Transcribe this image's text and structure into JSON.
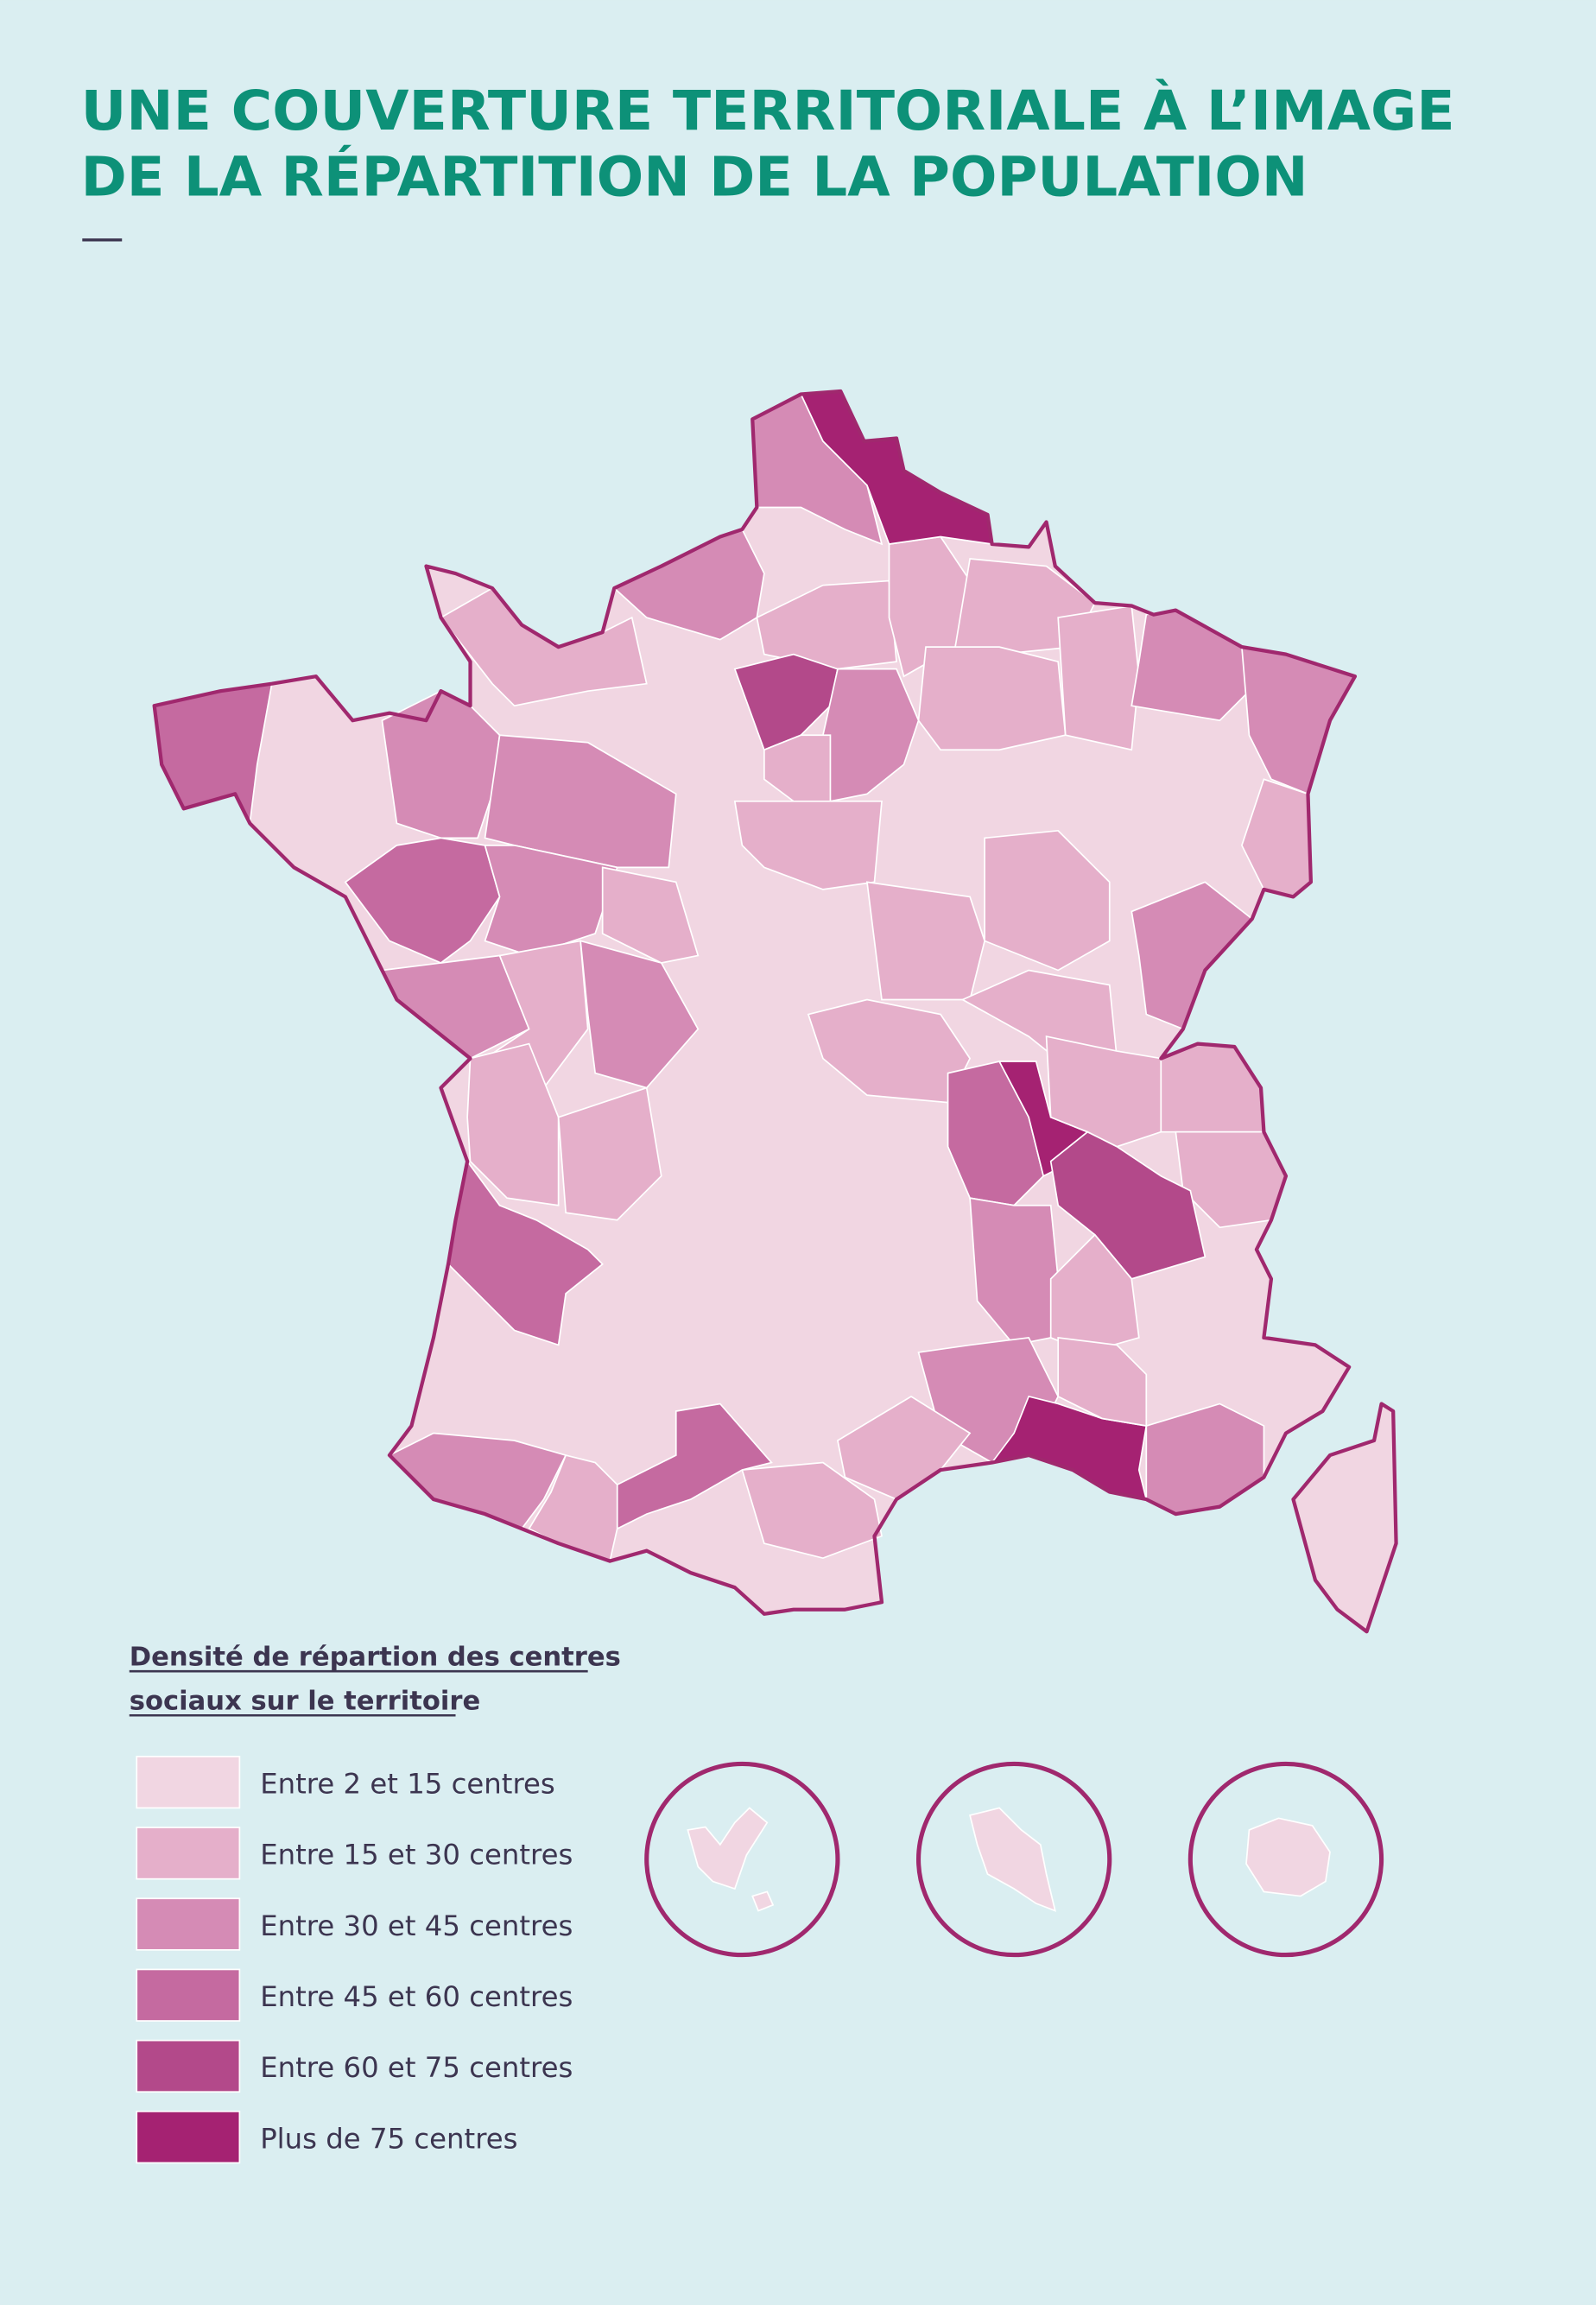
{
  "header": {
    "title_lines": [
      "UNE COUVERTURE TERRITORIALE À L’IMAGE",
      "DE LA RÉPARTITION DE LA POPULATION"
    ]
  },
  "legend": {
    "title_lines": [
      "Densité de répartion des centres",
      "sociaux sur le territoire"
    ],
    "items": [
      {
        "label": "Entre 2 et 15 centres",
        "color": "#f1d6e2"
      },
      {
        "label": "Entre 15 et 30 centres",
        "color": "#e5afca"
      },
      {
        "label": "Entre 30 et 45 centres",
        "color": "#d58bb5"
      },
      {
        "label": "Entre 45 et 60 centres",
        "color": "#c56aa0"
      },
      {
        "label": "Entre 60 et 75 centres",
        "color": "#b3498a"
      },
      {
        "label": "Plus de 75 centres",
        "color": "#a52272"
      }
    ]
  }
}
